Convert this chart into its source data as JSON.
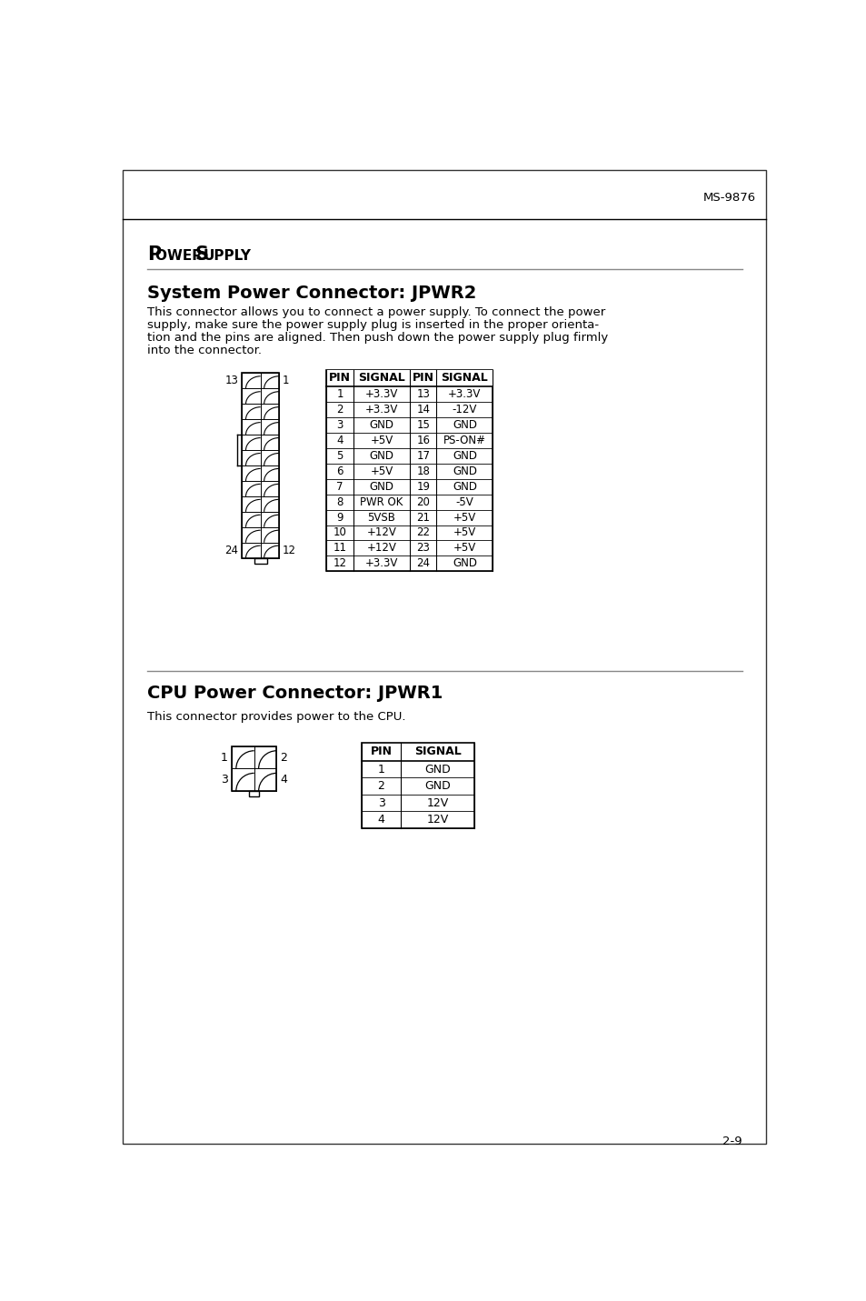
{
  "page_header_right": "MS-9876",
  "section_title_p": "P",
  "section_title_ower": "OWER ",
  "section_title_s": "S",
  "section_title_upply": "UPPLY",
  "subsection1_title": "System Power Connector: JPWR2",
  "subsection1_body_lines": [
    "This connector allows you to connect a power supply. To connect the power",
    "supply, make sure the power supply plug is inserted in the proper orienta-",
    "tion and the pins are aligned. Then push down the power supply plug firmly",
    "into the connector."
  ],
  "table1_headers": [
    "PIN",
    "SIGNAL",
    "PIN",
    "SIGNAL"
  ],
  "table1_rows": [
    [
      "1",
      "+3.3V",
      "13",
      "+3.3V"
    ],
    [
      "2",
      "+3.3V",
      "14",
      "-12V"
    ],
    [
      "3",
      "GND",
      "15",
      "GND"
    ],
    [
      "4",
      "+5V",
      "16",
      "PS-ON#"
    ],
    [
      "5",
      "GND",
      "17",
      "GND"
    ],
    [
      "6",
      "+5V",
      "18",
      "GND"
    ],
    [
      "7",
      "GND",
      "19",
      "GND"
    ],
    [
      "8",
      "PWR OK",
      "20",
      "-5V"
    ],
    [
      "9",
      "5VSB",
      "21",
      "+5V"
    ],
    [
      "10",
      "+12V",
      "22",
      "+5V"
    ],
    [
      "11",
      "+12V",
      "23",
      "+5V"
    ],
    [
      "12",
      "+3.3V",
      "24",
      "GND"
    ]
  ],
  "subsection2_title": "CPU Power Connector: JPWR1",
  "subsection2_body": "This connector provides power to the CPU.",
  "table2_headers": [
    "PIN",
    "SIGNAL"
  ],
  "table2_rows": [
    [
      "1",
      "GND"
    ],
    [
      "2",
      "GND"
    ],
    [
      "3",
      "12V"
    ],
    [
      "4",
      "12V"
    ]
  ],
  "page_number": "2-9",
  "bg_color": "#ffffff",
  "text_color": "#000000",
  "border_color": "#000000",
  "line_color": "#888888"
}
